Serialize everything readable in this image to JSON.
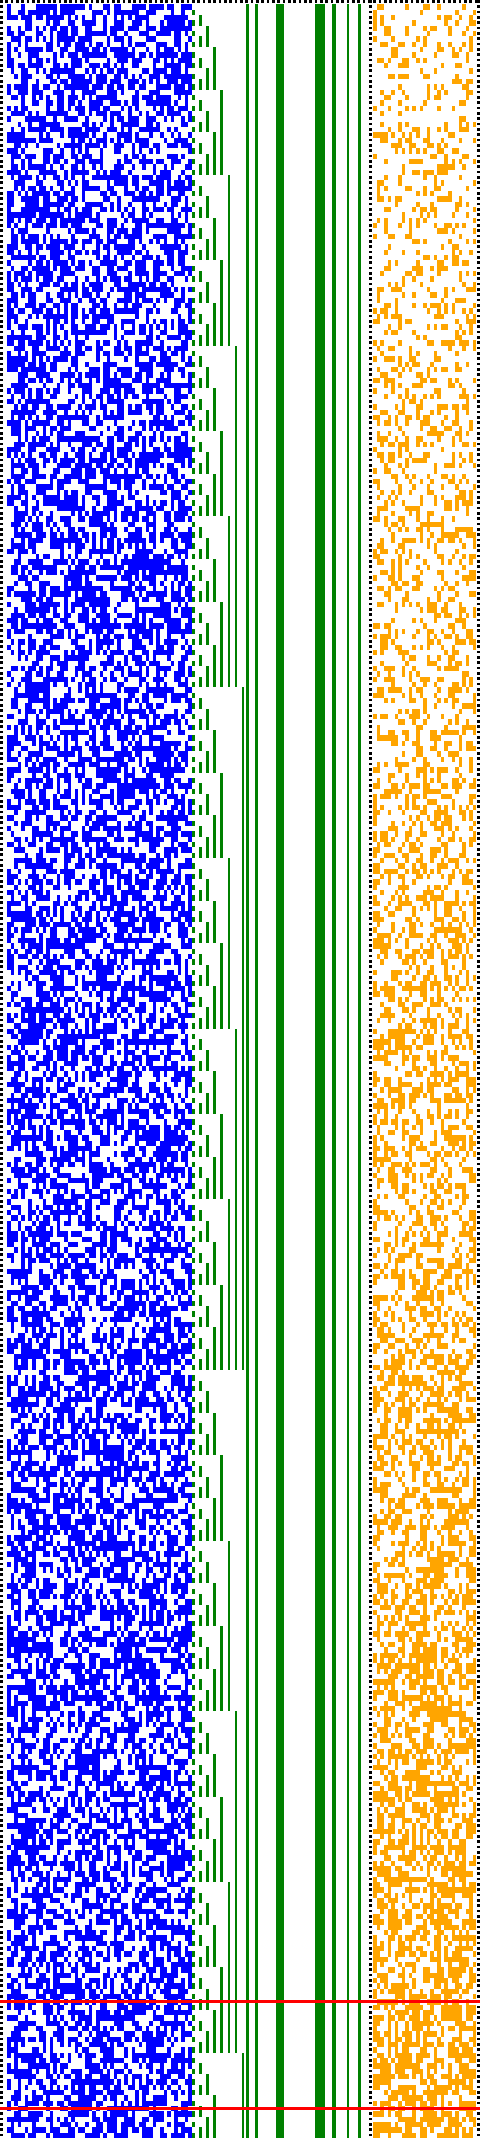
{
  "colors": {
    "background": "#ffffff",
    "cells_a": "#0000ff",
    "staircase": "#008000",
    "cells_b": "#ffa500",
    "border_dots": "#000000",
    "markers": "#ff0000"
  },
  "icons": {
    "border": "dotted-border",
    "marker": "horizontal-red-line"
  },
  "markers_count": 2,
  "bar_pattern": "binary-counter-staircase",
  "cell_patterns": [
    "pseudo-random-blue-cells",
    "pseudo-random-orange-cells"
  ]
}
